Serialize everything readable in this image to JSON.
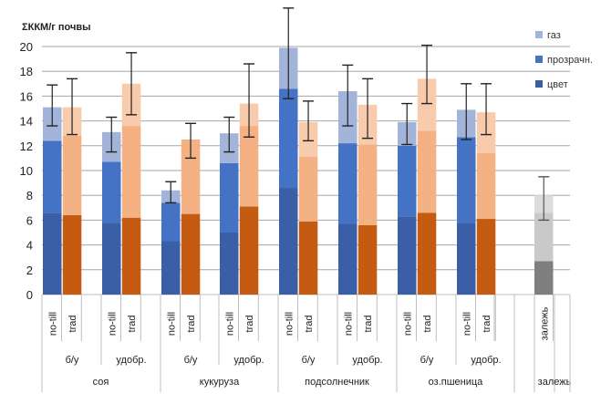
{
  "chart_data": {
    "type": "bar",
    "stacked": true,
    "title": "",
    "ylabel": "ΣККМ/г почвы",
    "xlabel": "",
    "ylim": [
      0,
      20
    ],
    "yticks": [
      0,
      2,
      4,
      6,
      8,
      10,
      12,
      14,
      16,
      18,
      20
    ],
    "grid": true,
    "legend_position": "top-right",
    "legend": [
      "газ",
      "прозрачн.",
      "цвет"
    ],
    "series_names": [
      "цвет",
      "прозрачн.",
      "газ"
    ],
    "colors": {
      "no-till": {
        "цвет": "#3a5fa6",
        "прозрачн.": "#4472c4",
        "газ": "#a3b4da"
      },
      "trad": {
        "цвет": "#c55a11",
        "прозрачн.": "#f4b183",
        "газ": "#f8cbad"
      },
      "залежь": {
        "цвет": "#7f7f7f",
        "прозрачн.": "#c9c9c9",
        "газ": "#dcdcdc"
      }
    },
    "groups": [
      {
        "crop": "соя",
        "subgroups": [
          {
            "label": "б/у",
            "bars": [
              {
                "label": "no-till",
                "type": "no-till",
                "цвет": 6.6,
                "прозрачн.": 5.8,
                "газ": 2.7,
                "total": 15.1,
                "err": [
                  13.6,
                  16.9
                ]
              },
              {
                "label": "trad",
                "type": "trad",
                "цвет": 6.4,
                "прозрачн.": 6.4,
                "газ": 2.3,
                "total": 15.1,
                "err": [
                  12.9,
                  17.4
                ]
              }
            ]
          },
          {
            "label": "удобр.",
            "bars": [
              {
                "label": "no-till",
                "type": "no-till",
                "цвет": 5.8,
                "прозрачн.": 4.9,
                "газ": 2.4,
                "total": 13.1,
                "err": [
                  11.5,
                  14.3
                ]
              },
              {
                "label": "trad",
                "type": "trad",
                "цвет": 6.2,
                "прозрачн.": 7.4,
                "газ": 3.4,
                "total": 17.0,
                "err": [
                  14.5,
                  19.5
                ]
              }
            ]
          }
        ]
      },
      {
        "crop": "кукуруза",
        "subgroups": [
          {
            "label": "б/у",
            "bars": [
              {
                "label": "no-till",
                "type": "no-till",
                "цвет": 4.3,
                "прозрачн.": 3.1,
                "газ": 1.0,
                "total": 8.4,
                "err": [
                  7.4,
                  9.1
                ]
              },
              {
                "label": "trad",
                "type": "trad",
                "цвет": 6.5,
                "прозрачн.": 6.0,
                "газ": 0.0,
                "total": 12.5,
                "err": [
                  11.0,
                  13.8
                ]
              }
            ]
          },
          {
            "label": "удобр.",
            "bars": [
              {
                "label": "no-till",
                "type": "no-till",
                "цвет": 5.0,
                "прозрачн.": 5.6,
                "газ": 2.4,
                "total": 13.0,
                "err": [
                  11.5,
                  14.3
                ]
              },
              {
                "label": "trad",
                "type": "trad",
                "цвет": 7.1,
                "прозрачн.": 6.5,
                "газ": 1.8,
                "total": 15.4,
                "err": [
                  12.7,
                  18.6
                ]
              }
            ]
          }
        ]
      },
      {
        "crop": "подсолнечник",
        "subgroups": [
          {
            "label": "б/у",
            "bars": [
              {
                "label": "no-till",
                "type": "no-till",
                "цвет": 8.6,
                "прозрачн.": 8.0,
                "газ": 3.3,
                "total": 19.9,
                "err": [
                  15.8,
                  23.1
                ]
              },
              {
                "label": "trad",
                "type": "trad",
                "цвет": 5.9,
                "прозрачн.": 5.2,
                "газ": 2.8,
                "total": 13.9,
                "err": [
                  12.4,
                  15.6
                ]
              }
            ]
          },
          {
            "label": "удобр.",
            "bars": [
              {
                "label": "no-till",
                "type": "no-till",
                "цвет": 5.7,
                "прозрачн.": 6.5,
                "газ": 4.2,
                "total": 16.4,
                "err": [
                  13.6,
                  18.5
                ]
              },
              {
                "label": "trad",
                "type": "trad",
                "цвет": 5.6,
                "прозрачн.": 6.5,
                "газ": 3.2,
                "total": 15.3,
                "err": [
                  12.6,
                  17.4
                ]
              }
            ]
          }
        ]
      },
      {
        "crop": "оз.пшеница",
        "subgroups": [
          {
            "label": "б/у",
            "bars": [
              {
                "label": "no-till",
                "type": "no-till",
                "цвет": 6.3,
                "прозрачн.": 5.7,
                "газ": 1.9,
                "total": 13.9,
                "err": [
                  12.1,
                  15.4
                ]
              },
              {
                "label": "trad",
                "type": "trad",
                "цвет": 6.6,
                "прозрачн.": 6.6,
                "газ": 4.2,
                "total": 17.4,
                "err": [
                  15.4,
                  20.1
                ]
              }
            ]
          },
          {
            "label": "удобр.",
            "bars": [
              {
                "label": "no-till",
                "type": "no-till",
                "цвет": 5.8,
                "прозрачн.": 6.9,
                "газ": 2.2,
                "total": 14.9,
                "err": [
                  12.5,
                  17.0
                ]
              },
              {
                "label": "trad",
                "type": "trad",
                "цвет": 6.1,
                "прозрачн.": 5.3,
                "газ": 3.3,
                "total": 14.7,
                "err": [
                  12.9,
                  17.0
                ]
              }
            ]
          }
        ]
      },
      {
        "crop": "залежь",
        "subgroups": [
          {
            "label": "",
            "bars": [
              {
                "label": "залежь",
                "type": "залежь",
                "цвет": 2.7,
                "прозрачн.": 3.9,
                "газ": 1.4,
                "total": 8.0,
                "err": [
                  6.0,
                  9.5
                ]
              }
            ]
          }
        ]
      }
    ]
  }
}
